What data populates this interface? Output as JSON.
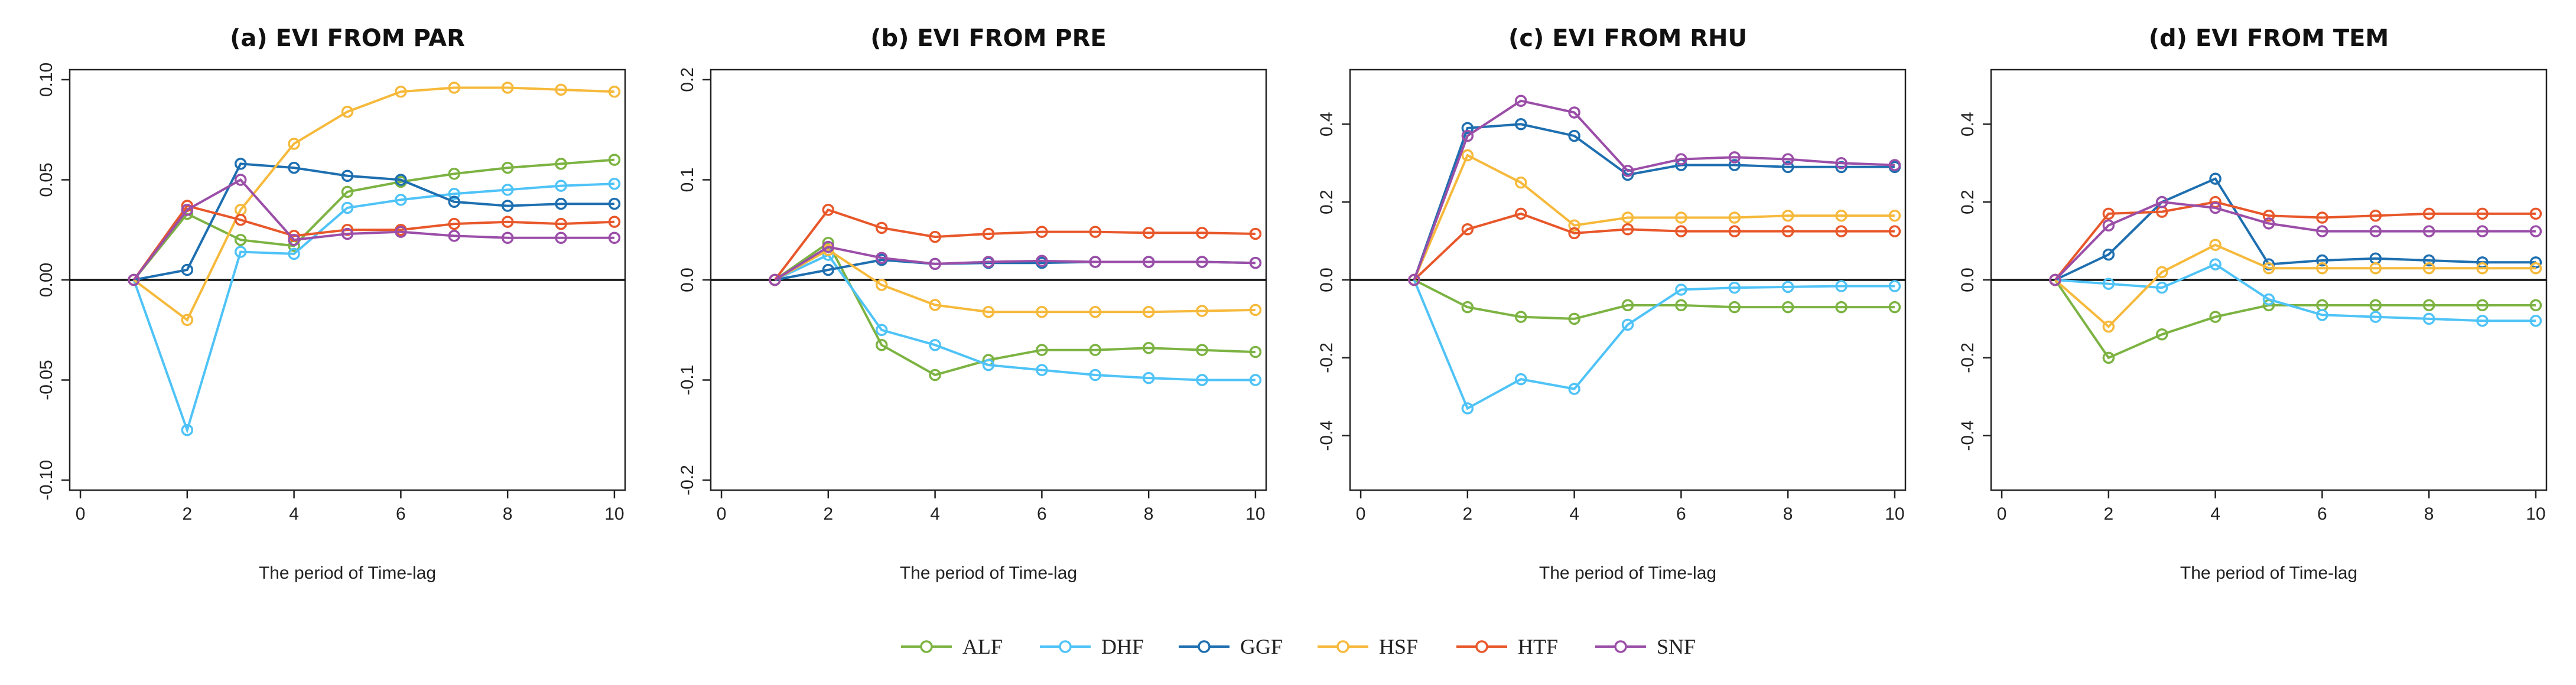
{
  "figure": {
    "x_label": "The period of Time-lag",
    "legend": [
      "ALF",
      "DHF",
      "GGF",
      "HSF",
      "HTF",
      "SNF"
    ]
  },
  "series_colors": {
    "ALF": "#7cb342",
    "DHF": "#4fc3f7",
    "GGF": "#1e6fb0",
    "HSF": "#f6b93b",
    "HTF": "#e8572a",
    "SNF": "#9b4ea8"
  },
  "chart_data": [
    {
      "type": "line",
      "title": "(a) EVI FROM PAR",
      "xlabel": "The period of Time-lag",
      "ylabel": "",
      "xlim": [
        -0.2,
        10.2
      ],
      "ylim": [
        -0.105,
        0.105
      ],
      "xticks": [
        0,
        2,
        4,
        6,
        8,
        10
      ],
      "xtick_labels": [
        "0",
        "2",
        "4",
        "6",
        "8",
        "10"
      ],
      "yticks": [
        -0.1,
        -0.05,
        0,
        0.05,
        0.1
      ],
      "ytick_labels": [
        "-0.10",
        "-0.05",
        "0.00",
        "0.05",
        "0.10"
      ],
      "x": [
        1,
        2,
        3,
        4,
        5,
        6,
        7,
        8,
        9,
        10
      ],
      "series": [
        {
          "name": "ALF",
          "values": [
            0,
            0.033,
            0.02,
            0.017,
            0.044,
            0.049,
            0.053,
            0.056,
            0.058,
            0.06
          ]
        },
        {
          "name": "DHF",
          "values": [
            0,
            -0.075,
            0.014,
            0.013,
            0.036,
            0.04,
            0.043,
            0.045,
            0.047,
            0.048
          ]
        },
        {
          "name": "GGF",
          "values": [
            0,
            0.005,
            0.058,
            0.056,
            0.052,
            0.05,
            0.039,
            0.037,
            0.038,
            0.038
          ]
        },
        {
          "name": "HSF",
          "values": [
            0,
            -0.02,
            0.035,
            0.068,
            0.084,
            0.094,
            0.096,
            0.096,
            0.095,
            0.094
          ]
        },
        {
          "name": "HTF",
          "values": [
            0,
            0.037,
            0.03,
            0.022,
            0.025,
            0.025,
            0.028,
            0.029,
            0.028,
            0.029
          ]
        },
        {
          "name": "SNF",
          "values": [
            0,
            0.035,
            0.05,
            0.02,
            0.023,
            0.024,
            0.022,
            0.021,
            0.021,
            0.021
          ]
        }
      ]
    },
    {
      "type": "line",
      "title": "(b) EVI FROM PRE",
      "xlabel": "The period of Time-lag",
      "ylabel": "",
      "xlim": [
        -0.2,
        10.2
      ],
      "ylim": [
        -0.21,
        0.21
      ],
      "xticks": [
        0,
        2,
        4,
        6,
        8,
        10
      ],
      "xtick_labels": [
        "0",
        "2",
        "4",
        "6",
        "8",
        "10"
      ],
      "yticks": [
        -0.2,
        -0.1,
        0,
        0.1,
        0.2
      ],
      "ytick_labels": [
        "-0.2",
        "-0.1",
        "0.0",
        "0.1",
        "0.2"
      ],
      "x": [
        1,
        2,
        3,
        4,
        5,
        6,
        7,
        8,
        9,
        10
      ],
      "series": [
        {
          "name": "ALF",
          "values": [
            0,
            0.037,
            -0.065,
            -0.095,
            -0.08,
            -0.07,
            -0.07,
            -0.068,
            -0.07,
            -0.072
          ]
        },
        {
          "name": "DHF",
          "values": [
            0,
            0.025,
            -0.05,
            -0.065,
            -0.085,
            -0.09,
            -0.095,
            -0.098,
            -0.1,
            -0.1
          ]
        },
        {
          "name": "GGF",
          "values": [
            0,
            0.01,
            0.02,
            0.016,
            0.017,
            0.017,
            0.018,
            0.018,
            0.018,
            0.017
          ]
        },
        {
          "name": "HSF",
          "values": [
            0,
            0.03,
            -0.005,
            -0.025,
            -0.032,
            -0.032,
            -0.032,
            -0.032,
            -0.031,
            -0.03
          ]
        },
        {
          "name": "HTF",
          "values": [
            0,
            0.07,
            0.052,
            0.043,
            0.046,
            0.048,
            0.048,
            0.047,
            0.047,
            0.046
          ]
        },
        {
          "name": "SNF",
          "values": [
            0,
            0.033,
            0.022,
            0.016,
            0.018,
            0.019,
            0.018,
            0.018,
            0.018,
            0.017
          ]
        }
      ]
    },
    {
      "type": "line",
      "title": "(c) EVI FROM RHU",
      "xlabel": "The period of Time-lag",
      "ylabel": "",
      "xlim": [
        -0.2,
        10.2
      ],
      "ylim": [
        -0.54,
        0.54
      ],
      "xticks": [
        0,
        2,
        4,
        6,
        8,
        10
      ],
      "xtick_labels": [
        "0",
        "2",
        "4",
        "6",
        "8",
        "10"
      ],
      "yticks": [
        -0.4,
        -0.2,
        0,
        0.2,
        0.4
      ],
      "ytick_labels": [
        "-0.4",
        "-0.2",
        "0.0",
        "0.2",
        "0.4"
      ],
      "x": [
        1,
        2,
        3,
        4,
        5,
        6,
        7,
        8,
        9,
        10
      ],
      "series": [
        {
          "name": "ALF",
          "values": [
            0,
            -0.07,
            -0.095,
            -0.1,
            -0.065,
            -0.065,
            -0.07,
            -0.07,
            -0.07,
            -0.07
          ]
        },
        {
          "name": "DHF",
          "values": [
            0,
            -0.33,
            -0.255,
            -0.28,
            -0.115,
            -0.025,
            -0.02,
            -0.018,
            -0.016,
            -0.016
          ]
        },
        {
          "name": "GGF",
          "values": [
            0,
            0.39,
            0.4,
            0.37,
            0.27,
            0.295,
            0.295,
            0.29,
            0.29,
            0.29
          ]
        },
        {
          "name": "HSF",
          "values": [
            0,
            0.32,
            0.25,
            0.14,
            0.16,
            0.16,
            0.16,
            0.165,
            0.165,
            0.165
          ]
        },
        {
          "name": "HTF",
          "values": [
            0,
            0.13,
            0.17,
            0.12,
            0.13,
            0.125,
            0.125,
            0.125,
            0.125,
            0.125
          ]
        },
        {
          "name": "SNF",
          "values": [
            0,
            0.37,
            0.46,
            0.43,
            0.28,
            0.31,
            0.315,
            0.31,
            0.3,
            0.295
          ]
        }
      ]
    },
    {
      "type": "line",
      "title": "(d) EVI FROM TEM",
      "xlabel": "The period of Time-lag",
      "ylabel": "",
      "xlim": [
        -0.2,
        10.2
      ],
      "ylim": [
        -0.54,
        0.54
      ],
      "xticks": [
        0,
        2,
        4,
        6,
        8,
        10
      ],
      "xtick_labels": [
        "0",
        "2",
        "4",
        "6",
        "8",
        "10"
      ],
      "yticks": [
        -0.4,
        -0.2,
        0,
        0.2,
        0.4
      ],
      "ytick_labels": [
        "-0.4",
        "-0.2",
        "0.0",
        "0.2",
        "0.4"
      ],
      "x": [
        1,
        2,
        3,
        4,
        5,
        6,
        7,
        8,
        9,
        10
      ],
      "series": [
        {
          "name": "ALF",
          "values": [
            0,
            -0.2,
            -0.14,
            -0.095,
            -0.065,
            -0.065,
            -0.065,
            -0.065,
            -0.065,
            -0.065
          ]
        },
        {
          "name": "DHF",
          "values": [
            0,
            -0.01,
            -0.02,
            0.04,
            -0.05,
            -0.09,
            -0.095,
            -0.1,
            -0.105,
            -0.105
          ]
        },
        {
          "name": "GGF",
          "values": [
            0,
            0.065,
            0.2,
            0.26,
            0.04,
            0.05,
            0.055,
            0.05,
            0.045,
            0.045
          ]
        },
        {
          "name": "HSF",
          "values": [
            0,
            -0.12,
            0.02,
            0.09,
            0.03,
            0.03,
            0.03,
            0.03,
            0.03,
            0.03
          ]
        },
        {
          "name": "HTF",
          "values": [
            0,
            0.17,
            0.175,
            0.2,
            0.165,
            0.16,
            0.165,
            0.17,
            0.17,
            0.17
          ]
        },
        {
          "name": "SNF",
          "values": [
            0,
            0.14,
            0.2,
            0.185,
            0.145,
            0.125,
            0.125,
            0.125,
            0.125,
            0.125
          ]
        }
      ]
    }
  ]
}
